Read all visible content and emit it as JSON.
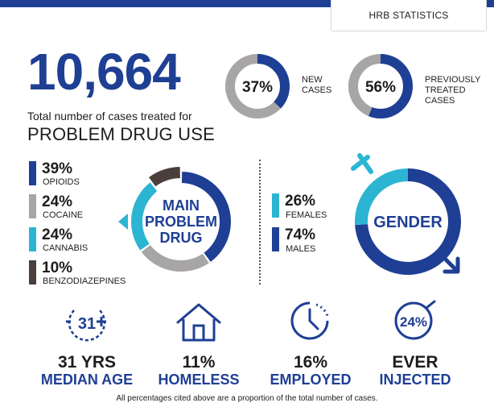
{
  "header": {
    "tab_label": "HRB STATISTICS"
  },
  "total": {
    "value": "10,664",
    "caption": "Total number of cases treated for",
    "headline": "PROBLEM DRUG USE"
  },
  "case_split": [
    {
      "pct_label": "37%",
      "value": 37,
      "label_lines": [
        "NEW",
        "CASES"
      ]
    },
    {
      "pct_label": "56%",
      "value": 56,
      "label_lines": [
        "PREVIOUSLY",
        "TREATED",
        "CASES"
      ]
    }
  ],
  "main_problem_drug": {
    "title_lines": [
      "MAIN",
      "PROBLEM",
      "DRUG"
    ],
    "items": [
      {
        "pct_label": "39%",
        "value": 39,
        "label": "OPIOIDS",
        "color": "#1e3f94"
      },
      {
        "pct_label": "24%",
        "value": 24,
        "label": "COCAINE",
        "color": "#a7a5a5"
      },
      {
        "pct_label": "24%",
        "value": 24,
        "label": "CANNABIS",
        "color": "#2cb5d3"
      },
      {
        "pct_label": "10%",
        "value": 10,
        "label": "BENZODIAZEPINES",
        "color": "#4a3f3c"
      }
    ]
  },
  "gender": {
    "title": "GENDER",
    "items": [
      {
        "pct_label": "26%",
        "value": 26,
        "label": "FEMALES",
        "color": "#2cb5d3"
      },
      {
        "pct_label": "74%",
        "value": 74,
        "label": "MALES",
        "color": "#1e3f94"
      }
    ]
  },
  "stats": [
    {
      "icon": "median-age-icon",
      "icon_text": "31",
      "value": "31 YRS",
      "label": "MEDIAN AGE"
    },
    {
      "icon": "house-icon",
      "value": "11%",
      "label": "HOMELESS"
    },
    {
      "icon": "clock-icon",
      "value": "16%",
      "label": "EMPLOYED"
    },
    {
      "icon": "injected-icon",
      "icon_text": "24%",
      "value": "EVER",
      "label": "INJECTED"
    }
  ],
  "footnote": "All percentages cited above are a proportion of the total number of cases.",
  "colors": {
    "navy": "#1e3f94",
    "cyan": "#2cb5d3",
    "grey": "#a7a5a5",
    "dark_brown": "#4a3f3c",
    "text": "#1d1d1b"
  }
}
